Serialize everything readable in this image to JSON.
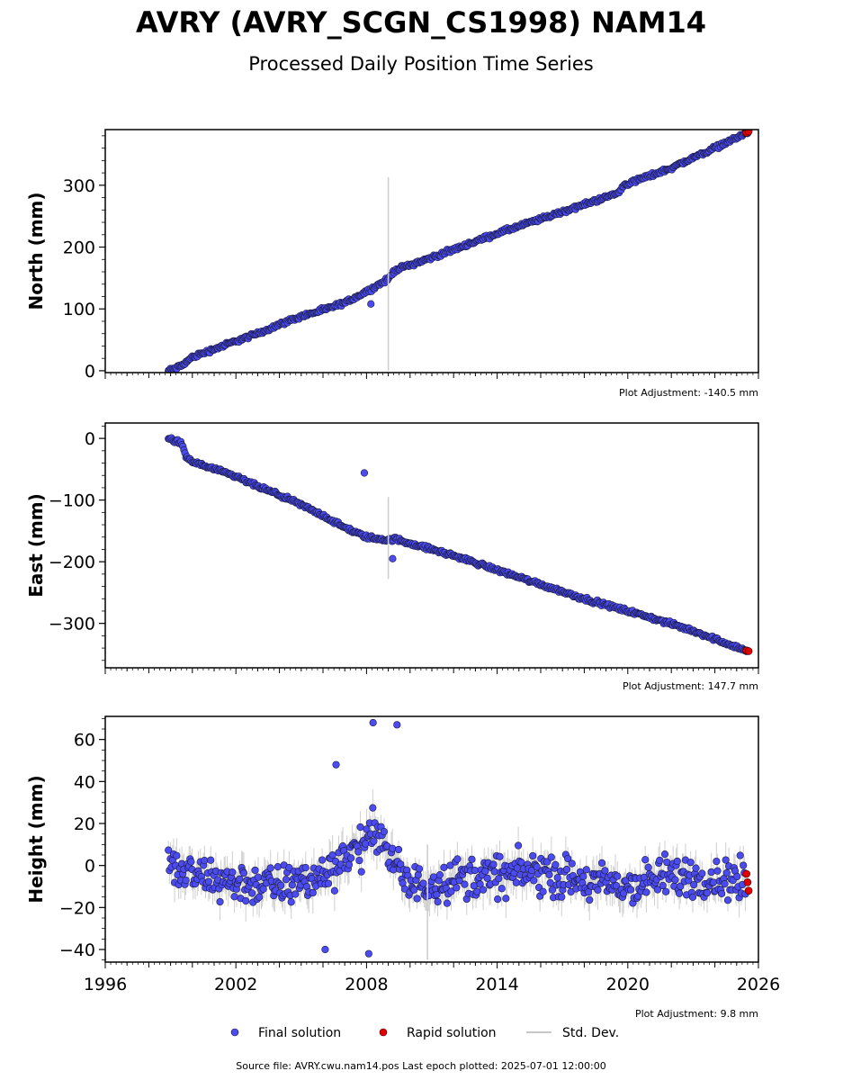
{
  "header": {
    "title": "AVRY (AVRY_SCGN_CS1998) NAM14",
    "subtitle": "Processed Daily Position Time Series"
  },
  "legend": {
    "final": "Final solution",
    "rapid": "Rapid solution",
    "std": "Std. Dev."
  },
  "footer": {
    "source": "Source file: AVRY.cwu.nam14.pos  Last epoch plotted: 2025-07-01 12:00:00"
  },
  "colors": {
    "final": "#4b4bf0",
    "rapid": "#e00000",
    "stddev": "#b0b0b0",
    "marker_edge": "#1a1a40"
  },
  "chart_data": [
    {
      "type": "scatter",
      "ylabel": "North (mm)",
      "adjustment": "Plot Adjustment: -140.5 mm",
      "xlim": [
        1996,
        2026
      ],
      "ylim": [
        -3,
        390
      ],
      "yticks": [
        0,
        100,
        200,
        300
      ],
      "series": [
        {
          "name": "Final solution",
          "x": [
            1998.9,
            1999.5,
            2000.0,
            2001.0,
            2002.0,
            2003.0,
            2004.0,
            2005.0,
            2006.0,
            2007.0,
            2008.0,
            2009.0,
            2009.3,
            2011.0,
            2014.0,
            2017.0,
            2019.6,
            2019.8,
            2022.0,
            2025.5
          ],
          "y": [
            0,
            8,
            22,
            35,
            48,
            60,
            75,
            88,
            98,
            110,
            128,
            148,
            163,
            183,
            222,
            257,
            288,
            300,
            328,
            385
          ]
        },
        {
          "name": "Rapid solution",
          "x": [
            2025.45,
            2025.55
          ],
          "y": [
            385,
            387
          ]
        }
      ],
      "outliers": [
        {
          "x": 2008.2,
          "y": 108
        }
      ],
      "stddev_spike": {
        "x": 2009.0,
        "y_low": 0,
        "y_high": 313
      }
    },
    {
      "type": "scatter",
      "ylabel": "East (mm)",
      "adjustment": "Plot Adjustment: 147.7 mm",
      "xlim": [
        1996,
        2026
      ],
      "ylim": [
        -372,
        25
      ],
      "yticks": [
        0,
        -100,
        -200,
        -300
      ],
      "series": [
        {
          "name": "Final solution",
          "x": [
            1998.9,
            1999.5,
            1999.7,
            2000.0,
            2001.0,
            2002.0,
            2003.0,
            2004.0,
            2005.0,
            2006.0,
            2007.0,
            2008.0,
            2009.0,
            2009.3,
            2012.0,
            2015.0,
            2018.0,
            2021.0,
            2023.0,
            2025.5
          ],
          "y": [
            0,
            -8,
            -30,
            -38,
            -50,
            -62,
            -78,
            -92,
            -108,
            -125,
            -145,
            -160,
            -165,
            -163,
            -190,
            -225,
            -260,
            -290,
            -312,
            -345
          ]
        },
        {
          "name": "Rapid solution",
          "x": [
            2025.45,
            2025.55
          ],
          "y": [
            -344,
            -345
          ]
        }
      ],
      "outliers": [
        {
          "x": 2007.9,
          "y": -56
        },
        {
          "x": 2009.2,
          "y": -195
        }
      ],
      "stddev_spike": {
        "x": 2009.0,
        "y_low": -228,
        "y_high": -95
      }
    },
    {
      "type": "scatter",
      "ylabel": "Height (mm)",
      "adjustment": "Plot Adjustment: 9.8 mm",
      "xlim": [
        1996,
        2026
      ],
      "ylim": [
        -46,
        71
      ],
      "yticks": [
        -40,
        -20,
        0,
        20,
        40,
        60
      ],
      "xticks": [
        1996,
        2002,
        2008,
        2014,
        2020,
        2026
      ],
      "series": [
        {
          "name": "Final solution",
          "x": [
            1998.9,
            2000.0,
            2002.0,
            2004.0,
            2006.0,
            2007.0,
            2008.0,
            2008.5,
            2009.0,
            2010.0,
            2012.0,
            2014.0,
            2016.0,
            2018.0,
            2020.0,
            2022.0,
            2024.0,
            2025.4
          ],
          "y": [
            0,
            -5,
            -8,
            -10,
            -5,
            5,
            10,
            20,
            5,
            -10,
            -6,
            -5,
            -3,
            -8,
            -10,
            -5,
            -6,
            -8
          ]
        },
        {
          "name": "Rapid solution",
          "x": [
            2025.45,
            2025.5,
            2025.55
          ],
          "y": [
            -4,
            -8,
            -12
          ]
        }
      ],
      "outliers": [
        {
          "x": 2006.6,
          "y": 48
        },
        {
          "x": 2008.3,
          "y": 68
        },
        {
          "x": 2009.4,
          "y": 67
        },
        {
          "x": 2008.1,
          "y": -42
        },
        {
          "x": 2006.1,
          "y": -40
        }
      ],
      "stddev_spike": {
        "x": 2010.8,
        "y_low": -45,
        "y_high": 10
      }
    }
  ]
}
